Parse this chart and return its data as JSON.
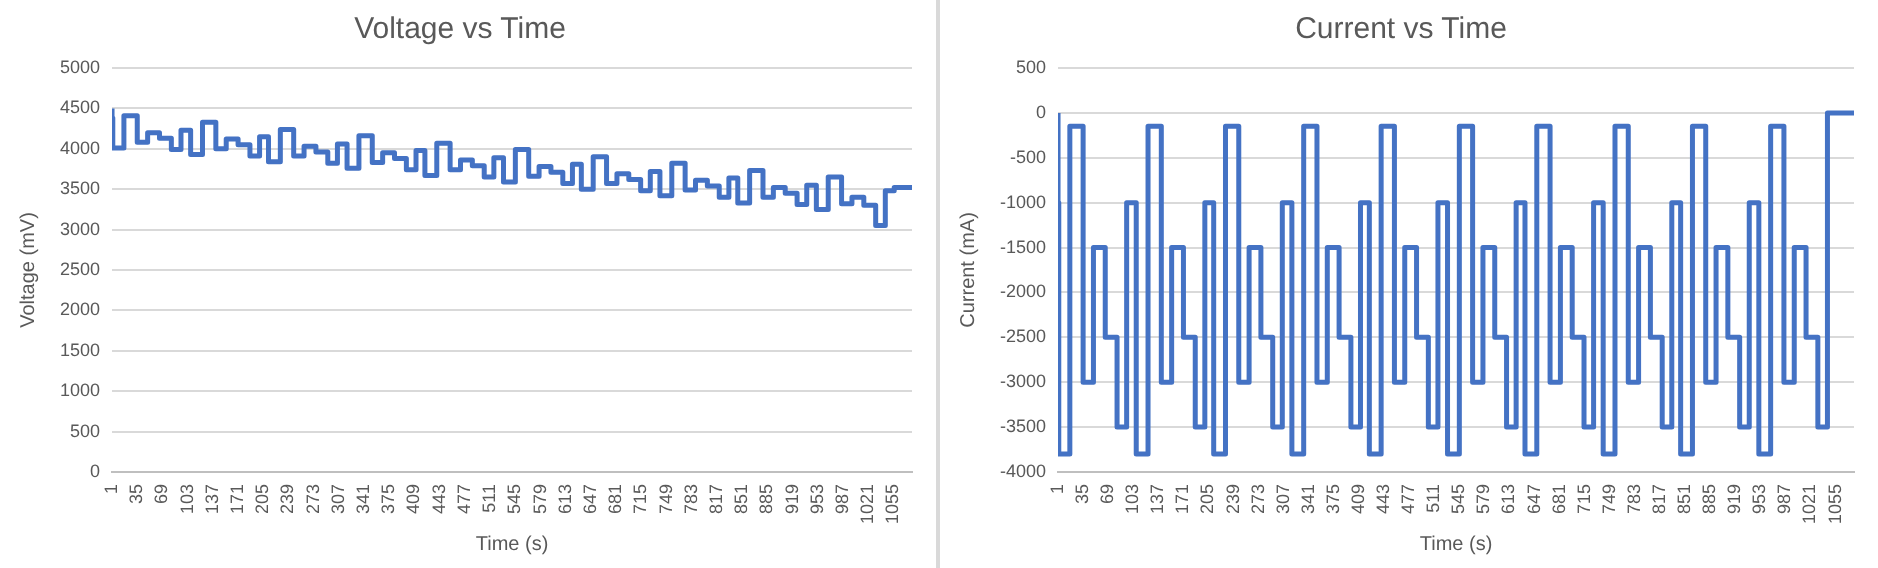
{
  "chart_data": [
    {
      "type": "step",
      "title": "Voltage vs Time",
      "xlabel": "Time (s)",
      "ylabel": "Voltage (mV)",
      "x": [
        1,
        2,
        17,
        35,
        49,
        65,
        81,
        94,
        107,
        123,
        141,
        155,
        171,
        187,
        200,
        212,
        228,
        246,
        260,
        276,
        292,
        305,
        318,
        334,
        352,
        366,
        382,
        398,
        411,
        423,
        439,
        457,
        471,
        487,
        503,
        516,
        529,
        545,
        563,
        577,
        593,
        609,
        622,
        634,
        650,
        668,
        682,
        698,
        714,
        727,
        740,
        756,
        774,
        788,
        804,
        820,
        833,
        845,
        861,
        879,
        893,
        909,
        925,
        938,
        951,
        967,
        985,
        999,
        1015,
        1031,
        1044,
        1056,
        1080
      ],
      "series": [
        {
          "color": "#4472c4",
          "values": [
            4500,
            4380,
            4010,
            4410,
            4080,
            4200,
            4130,
            3990,
            4230,
            3930,
            4330,
            4000,
            4120,
            4050,
            3910,
            4150,
            3840,
            4240,
            3910,
            4030,
            3960,
            3820,
            4060,
            3760,
            4160,
            3830,
            3950,
            3880,
            3740,
            3980,
            3670,
            4070,
            3740,
            3860,
            3790,
            3650,
            3890,
            3590,
            3990,
            3660,
            3780,
            3710,
            3570,
            3810,
            3500,
            3900,
            3570,
            3690,
            3620,
            3480,
            3720,
            3420,
            3820,
            3490,
            3610,
            3540,
            3400,
            3640,
            3330,
            3730,
            3400,
            3520,
            3450,
            3310,
            3550,
            3250,
            3650,
            3320,
            3400,
            3300,
            3050,
            3480,
            3520
          ]
        }
      ],
      "xlim": [
        1,
        1080
      ],
      "xticks": [
        1,
        35,
        69,
        103,
        137,
        171,
        205,
        239,
        273,
        307,
        341,
        375,
        409,
        443,
        477,
        511,
        545,
        579,
        613,
        647,
        681,
        715,
        749,
        783,
        817,
        851,
        885,
        919,
        953,
        987,
        1021,
        1055
      ],
      "ylim": [
        0,
        5000
      ],
      "yticks": [
        0,
        500,
        1000,
        1500,
        2000,
        2500,
        3000,
        3500,
        4000,
        4500,
        5000
      ],
      "grid": "y"
    },
    {
      "type": "step",
      "title": "Current vs Time",
      "xlabel": "Time (s)",
      "ylabel": "Current (mA)",
      "x": [
        1,
        2,
        17,
        35,
        49,
        65,
        81,
        94,
        107,
        123,
        141,
        155,
        171,
        187,
        200,
        212,
        228,
        246,
        260,
        276,
        292,
        305,
        318,
        334,
        352,
        366,
        382,
        398,
        411,
        423,
        439,
        457,
        471,
        487,
        503,
        516,
        529,
        545,
        563,
        577,
        593,
        609,
        622,
        634,
        650,
        668,
        682,
        698,
        714,
        727,
        740,
        756,
        774,
        788,
        804,
        820,
        833,
        845,
        861,
        879,
        893,
        909,
        925,
        938,
        951,
        967,
        985,
        999,
        1015,
        1031,
        1044,
        1056,
        1080
      ],
      "series": [
        {
          "color": "#4472c4",
          "values": [
            0,
            -1000,
            -3800,
            -150,
            -3000,
            -1500,
            -2500,
            -3500,
            -1000,
            -3800,
            -150,
            -3000,
            -1500,
            -2500,
            -3500,
            -1000,
            -3800,
            -150,
            -3000,
            -1500,
            -2500,
            -3500,
            -1000,
            -3800,
            -150,
            -3000,
            -1500,
            -2500,
            -3500,
            -1000,
            -3800,
            -150,
            -3000,
            -1500,
            -2500,
            -3500,
            -1000,
            -3800,
            -150,
            -3000,
            -1500,
            -2500,
            -3500,
            -1000,
            -3800,
            -150,
            -3000,
            -1500,
            -2500,
            -3500,
            -1000,
            -3800,
            -150,
            -3000,
            -1500,
            -2500,
            -3500,
            -1000,
            -3800,
            -150,
            -3000,
            -1500,
            -2500,
            -3500,
            -1000,
            -3800,
            -150,
            -3000,
            -1500,
            -2500,
            -3500,
            0,
            0
          ]
        }
      ],
      "xlim": [
        1,
        1080
      ],
      "xticks": [
        1,
        35,
        69,
        103,
        137,
        171,
        205,
        239,
        273,
        307,
        341,
        375,
        409,
        443,
        477,
        511,
        545,
        579,
        613,
        647,
        681,
        715,
        749,
        783,
        817,
        851,
        885,
        919,
        953,
        987,
        1021,
        1055
      ],
      "ylim": [
        -4000,
        500
      ],
      "yticks": [
        -4000,
        -3500,
        -3000,
        -2500,
        -2000,
        -1500,
        -1000,
        -500,
        0,
        500
      ],
      "grid": "y"
    }
  ]
}
